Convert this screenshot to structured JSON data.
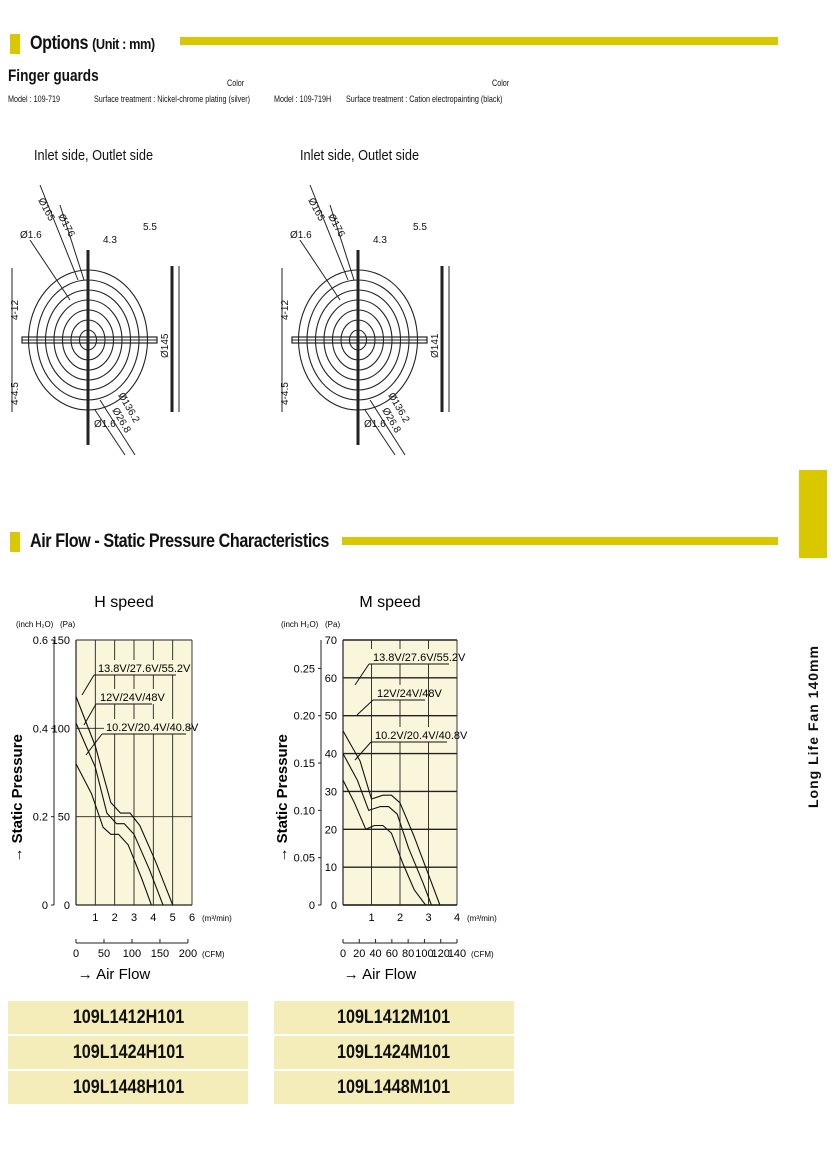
{
  "options": {
    "title": "Options",
    "unit": "(Unit : mm)"
  },
  "finger_guards": {
    "title": "Finger guards",
    "left": {
      "color_label": "Color",
      "model": "Model : 109-719",
      "surface": "Surface treatment : Nickel-chrome plating (silver)",
      "caption": "Inlet side, Outlet side",
      "dims": [
        "Ø165",
        "Ø176",
        "Ø1.6",
        "4.3",
        "5.5",
        "4-12",
        "4-4.5",
        "Ø145",
        "Ø136.2",
        "Ø26.8",
        "Ø1.6"
      ]
    },
    "right": {
      "color_label": "Color",
      "model": "Model : 109-719H",
      "surface": "Surface treatment : Cation electropainting (black)",
      "caption": "Inlet side, Outlet side",
      "dims": [
        "Ø165",
        "Ø176",
        "Ø1.6",
        "4.3",
        "5.5",
        "4-12",
        "4-4.5",
        "Ø141",
        "Ø136.2",
        "Ø26.8",
        "Ø1.6"
      ]
    }
  },
  "airflow": {
    "title": "Air Flow - Static Pressure Characteristics"
  },
  "side_tab": {
    "label": "Long Life Fan 140mm",
    "color": "#d9c800"
  },
  "chart_data": [
    {
      "type": "line",
      "title": "H speed",
      "ylabel": "→ Static Pressure",
      "xlabel": "→ Air Flow",
      "y_units": [
        "(inch H₂O)",
        "(Pa)"
      ],
      "x_units": [
        "(m³/min)",
        "(CFM)"
      ],
      "ylim_pa": [
        0,
        150
      ],
      "xlim_m3": [
        0,
        6
      ],
      "yticks_pa": [
        "0",
        "50",
        "100",
        "150"
      ],
      "yticks_inch": [
        "0",
        "0.2",
        "0.4",
        "0.6"
      ],
      "xticks_m3": [
        "1",
        "2",
        "3",
        "4",
        "5",
        "6"
      ],
      "xticks_cfm": [
        "0",
        "50",
        "100",
        "150",
        "200"
      ],
      "series": [
        {
          "name": "13.8V/27.6V/55.2V",
          "x": [
            0,
            1,
            1.8,
            2.3,
            2.8,
            3.3,
            4.1,
            5.0
          ],
          "y": [
            118,
            90,
            58,
            52,
            52,
            45,
            25,
            0
          ]
        },
        {
          "name": "12V/24V/48V",
          "x": [
            0,
            1,
            1.6,
            2.1,
            2.5,
            3.0,
            3.8,
            4.5
          ],
          "y": [
            103,
            78,
            52,
            46,
            46,
            40,
            20,
            0
          ]
        },
        {
          "name": "10.2V/20.4V/40.8V",
          "x": [
            0,
            0.8,
            1.4,
            1.8,
            2.2,
            2.7,
            3.4,
            3.9
          ],
          "y": [
            80,
            63,
            44,
            40,
            40,
            34,
            15,
            0
          ]
        }
      ]
    },
    {
      "type": "line",
      "title": "M speed",
      "ylabel": "→ Static Pressure",
      "xlabel": "→ Air Flow",
      "y_units": [
        "(inch H₂O)",
        "(Pa)"
      ],
      "x_units": [
        "(m³/min)",
        "(CFM)"
      ],
      "ylim_pa": [
        0,
        70
      ],
      "xlim_m3": [
        0,
        4
      ],
      "yticks_pa": [
        "0",
        "10",
        "20",
        "30",
        "40",
        "50",
        "60",
        "70"
      ],
      "yticks_inch": [
        "0",
        "0.05",
        "0.10",
        "0.15",
        "0.20",
        "0.25"
      ],
      "xticks_m3": [
        "1",
        "2",
        "3",
        "4"
      ],
      "xticks_cfm": [
        "0",
        "20",
        "40",
        "60",
        "80",
        "100",
        "120",
        "140"
      ],
      "series": [
        {
          "name": "13.8V/27.6V/55.2V",
          "x": [
            0,
            0.6,
            1.0,
            1.4,
            1.7,
            2.0,
            2.5,
            3.0,
            3.4
          ],
          "y": [
            46,
            38,
            28,
            29,
            29,
            27,
            18,
            8,
            0
          ]
        },
        {
          "name": "12V/24V/48V",
          "x": [
            0,
            0.5,
            0.9,
            1.3,
            1.6,
            1.9,
            2.3,
            2.8,
            3.1
          ],
          "y": [
            40,
            33,
            25,
            26,
            26,
            24,
            15,
            6,
            0
          ]
        },
        {
          "name": "10.2V/20.4V/40.8V",
          "x": [
            0,
            0.4,
            0.8,
            1.1,
            1.4,
            1.7,
            2.1,
            2.5,
            2.9
          ],
          "y": [
            33,
            27,
            20,
            21,
            21,
            19,
            11,
            4,
            0
          ]
        }
      ]
    }
  ],
  "models": {
    "h": [
      "109L1412H101",
      "109L1424H101",
      "109L1448H101"
    ],
    "m": [
      "109L1412M101",
      "109L1424M101",
      "109L1448M101"
    ]
  }
}
